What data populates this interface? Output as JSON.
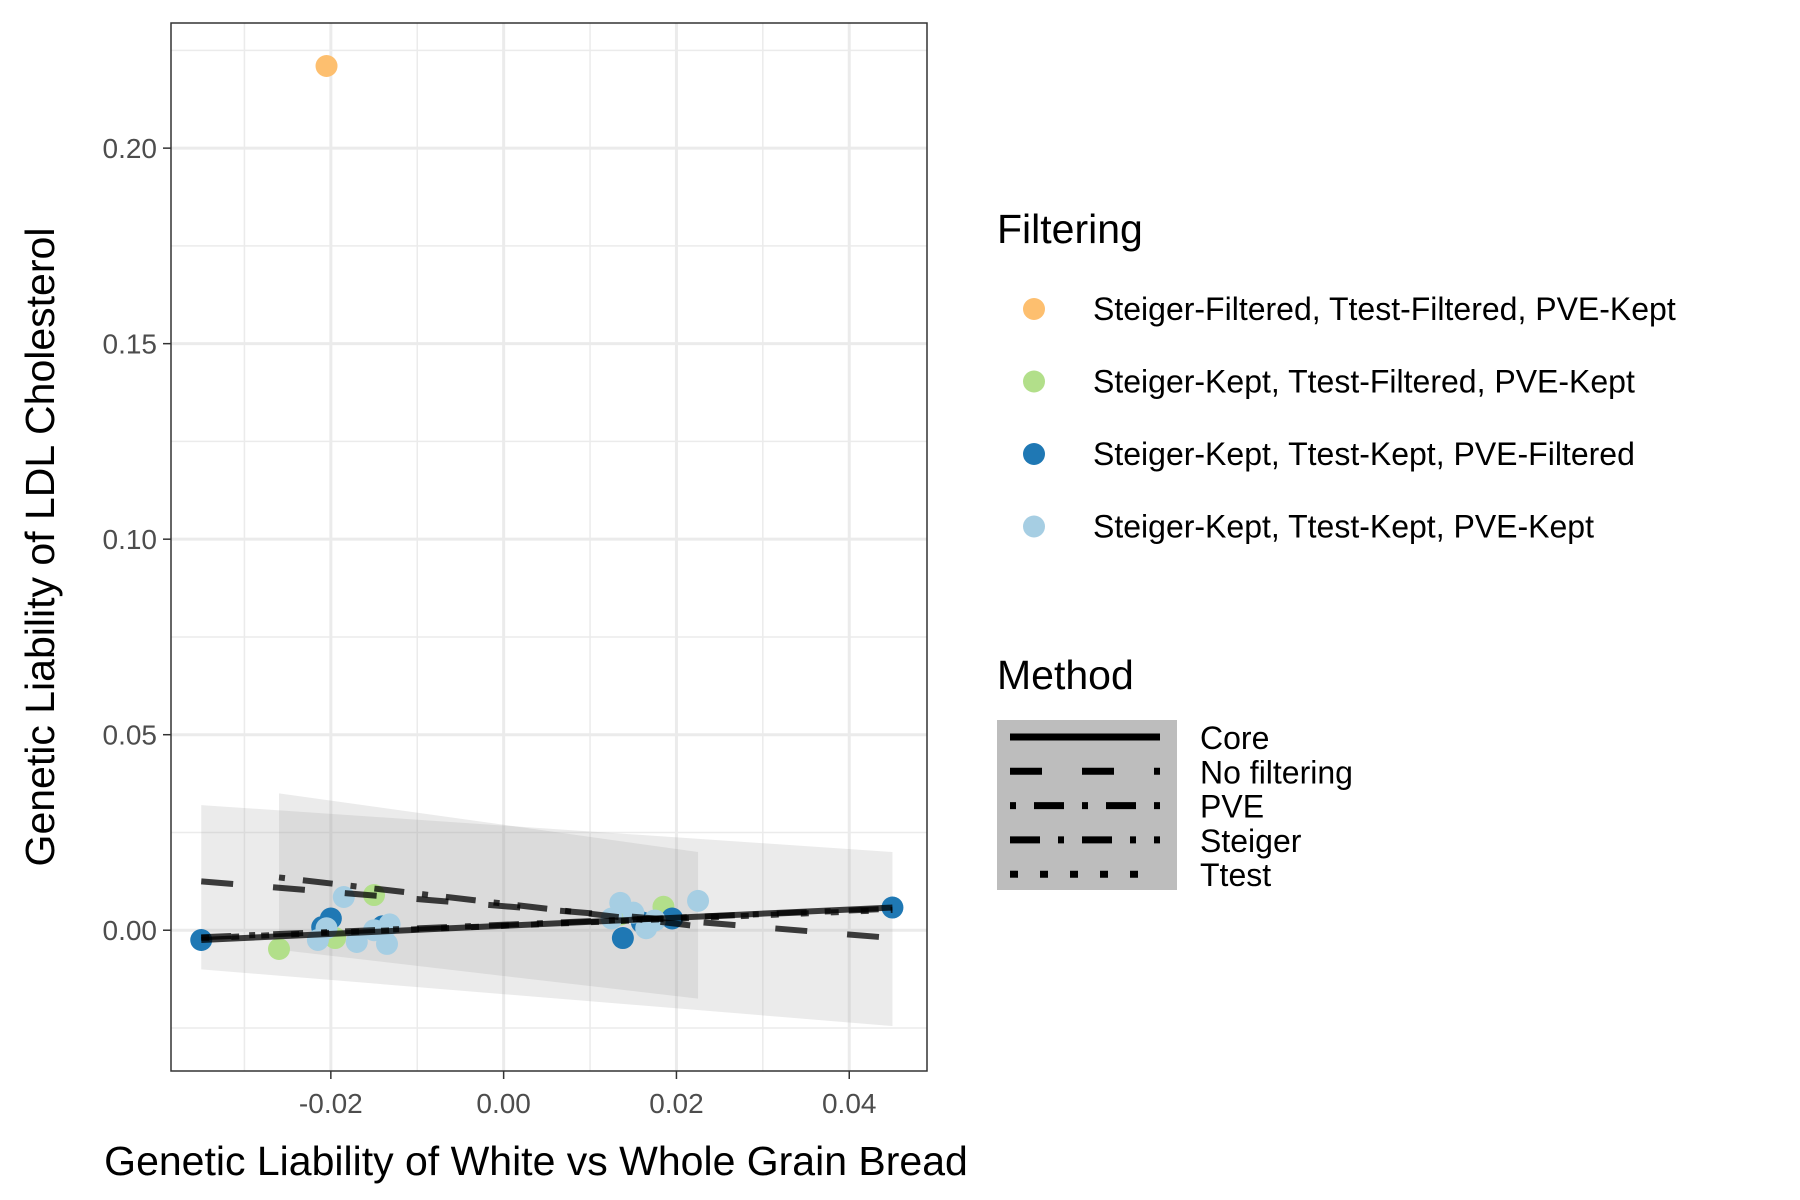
{
  "chart_data": {
    "type": "scatter",
    "xlabel": "Genetic Liability of White vs Whole Grain Bread",
    "ylabel": "Genetic Liability of LDL Cholesterol",
    "xlim": [
      -0.0385,
      0.049
    ],
    "ylim": [
      -0.036,
      0.232
    ],
    "x_ticks": [
      {
        "value": -0.02,
        "label": "-0.02"
      },
      {
        "value": 0.0,
        "label": "0.00"
      },
      {
        "value": 0.02,
        "label": "0.02"
      },
      {
        "value": 0.04,
        "label": "0.04"
      }
    ],
    "y_ticks": [
      {
        "value": 0.0,
        "label": "0.00"
      },
      {
        "value": 0.05,
        "label": "0.05"
      },
      {
        "value": 0.1,
        "label": "0.10"
      },
      {
        "value": 0.15,
        "label": "0.15"
      },
      {
        "value": 0.2,
        "label": "0.20"
      }
    ],
    "x_minor_grid": [
      -0.03,
      -0.01,
      0.01,
      0.03
    ],
    "y_minor_grid": [
      -0.025,
      0.025,
      0.075,
      0.125,
      0.175,
      0.225
    ],
    "grid": true,
    "legend_position": "right",
    "filtering_legend": {
      "title": "Filtering",
      "items": [
        {
          "label": "Steiger-Filtered, Ttest-Filtered, PVE-Kept",
          "color": "#FDBF6F"
        },
        {
          "label": "Steiger-Kept, Ttest-Filtered, PVE-Kept",
          "color": "#B2DF8A"
        },
        {
          "label": "Steiger-Kept, Ttest-Kept, PVE-Filtered",
          "color": "#1F78B4"
        },
        {
          "label": "Steiger-Kept, Ttest-Kept, PVE-Kept",
          "color": "#A6CEE3"
        }
      ]
    },
    "method_legend": {
      "title": "Method",
      "items": [
        {
          "label": "Core",
          "dash": "none"
        },
        {
          "label": "No filtering",
          "dash": "32 40"
        },
        {
          "label": "PVE",
          "dash": "6 18 30 18"
        },
        {
          "label": "Steiger",
          "dash": "30 18 6 18"
        },
        {
          "label": "Ttest",
          "dash": "8 22"
        }
      ]
    },
    "series": [
      {
        "name": "Steiger-Filtered, Ttest-Filtered, PVE-Kept",
        "color": "#FDBF6F",
        "points": [
          [
            -0.0205,
            0.221
          ]
        ]
      },
      {
        "name": "Steiger-Kept, Ttest-Filtered, PVE-Kept",
        "color": "#B2DF8A",
        "points": [
          [
            -0.026,
            -0.0048
          ],
          [
            -0.0195,
            -0.002
          ],
          [
            -0.015,
            0.009
          ],
          [
            0.0135,
            0.004
          ],
          [
            0.0185,
            0.006
          ]
        ]
      },
      {
        "name": "Steiger-Kept, Ttest-Kept, PVE-Filtered",
        "color": "#1F78B4",
        "points": [
          [
            -0.035,
            -0.0025
          ],
          [
            -0.021,
            0.0008
          ],
          [
            -0.02,
            0.003
          ],
          [
            -0.014,
            0.001
          ],
          [
            0.0138,
            -0.002
          ],
          [
            0.016,
            0.002
          ],
          [
            0.0195,
            0.003
          ],
          [
            0.045,
            0.0058
          ]
        ]
      },
      {
        "name": "Steiger-Kept, Ttest-Kept, PVE-Kept",
        "color": "#A6CEE3",
        "points": [
          [
            -0.0215,
            -0.0025
          ],
          [
            -0.0205,
            0.0005
          ],
          [
            -0.0185,
            0.0085
          ],
          [
            -0.017,
            -0.003
          ],
          [
            -0.015,
            0.0
          ],
          [
            -0.0135,
            -0.0035
          ],
          [
            -0.0132,
            0.0015
          ],
          [
            0.0125,
            0.003
          ],
          [
            0.0135,
            0.007
          ],
          [
            0.015,
            0.0045
          ],
          [
            0.0165,
            0.0005
          ],
          [
            0.0175,
            0.0025
          ],
          [
            0.0225,
            0.0075
          ]
        ]
      }
    ],
    "ribbons": [
      {
        "x": [
          -0.035,
          0.045
        ],
        "upper": [
          0.032,
          0.02
        ],
        "lower": [
          -0.01,
          -0.0245
        ]
      },
      {
        "x": [
          -0.026,
          0.0225
        ],
        "upper": [
          0.035,
          0.02
        ],
        "lower": [
          -0.005,
          -0.0175
        ]
      }
    ],
    "fit_lines": [
      {
        "method": "Core",
        "x": [
          -0.035,
          0.045
        ],
        "y": [
          -0.0025,
          0.0058
        ]
      },
      {
        "method": "No filtering",
        "x": [
          -0.035,
          0.045
        ],
        "y": [
          0.0125,
          -0.002
        ]
      },
      {
        "method": "PVE",
        "x": [
          -0.026,
          0.0225
        ],
        "y": [
          0.0135,
          0.001
        ]
      },
      {
        "method": "Steiger",
        "x": [
          -0.035,
          0.045
        ],
        "y": [
          -0.0018,
          0.0055
        ]
      },
      {
        "method": "Ttest",
        "x": [
          -0.035,
          0.045
        ],
        "y": [
          -0.002,
          0.0052
        ]
      }
    ]
  }
}
